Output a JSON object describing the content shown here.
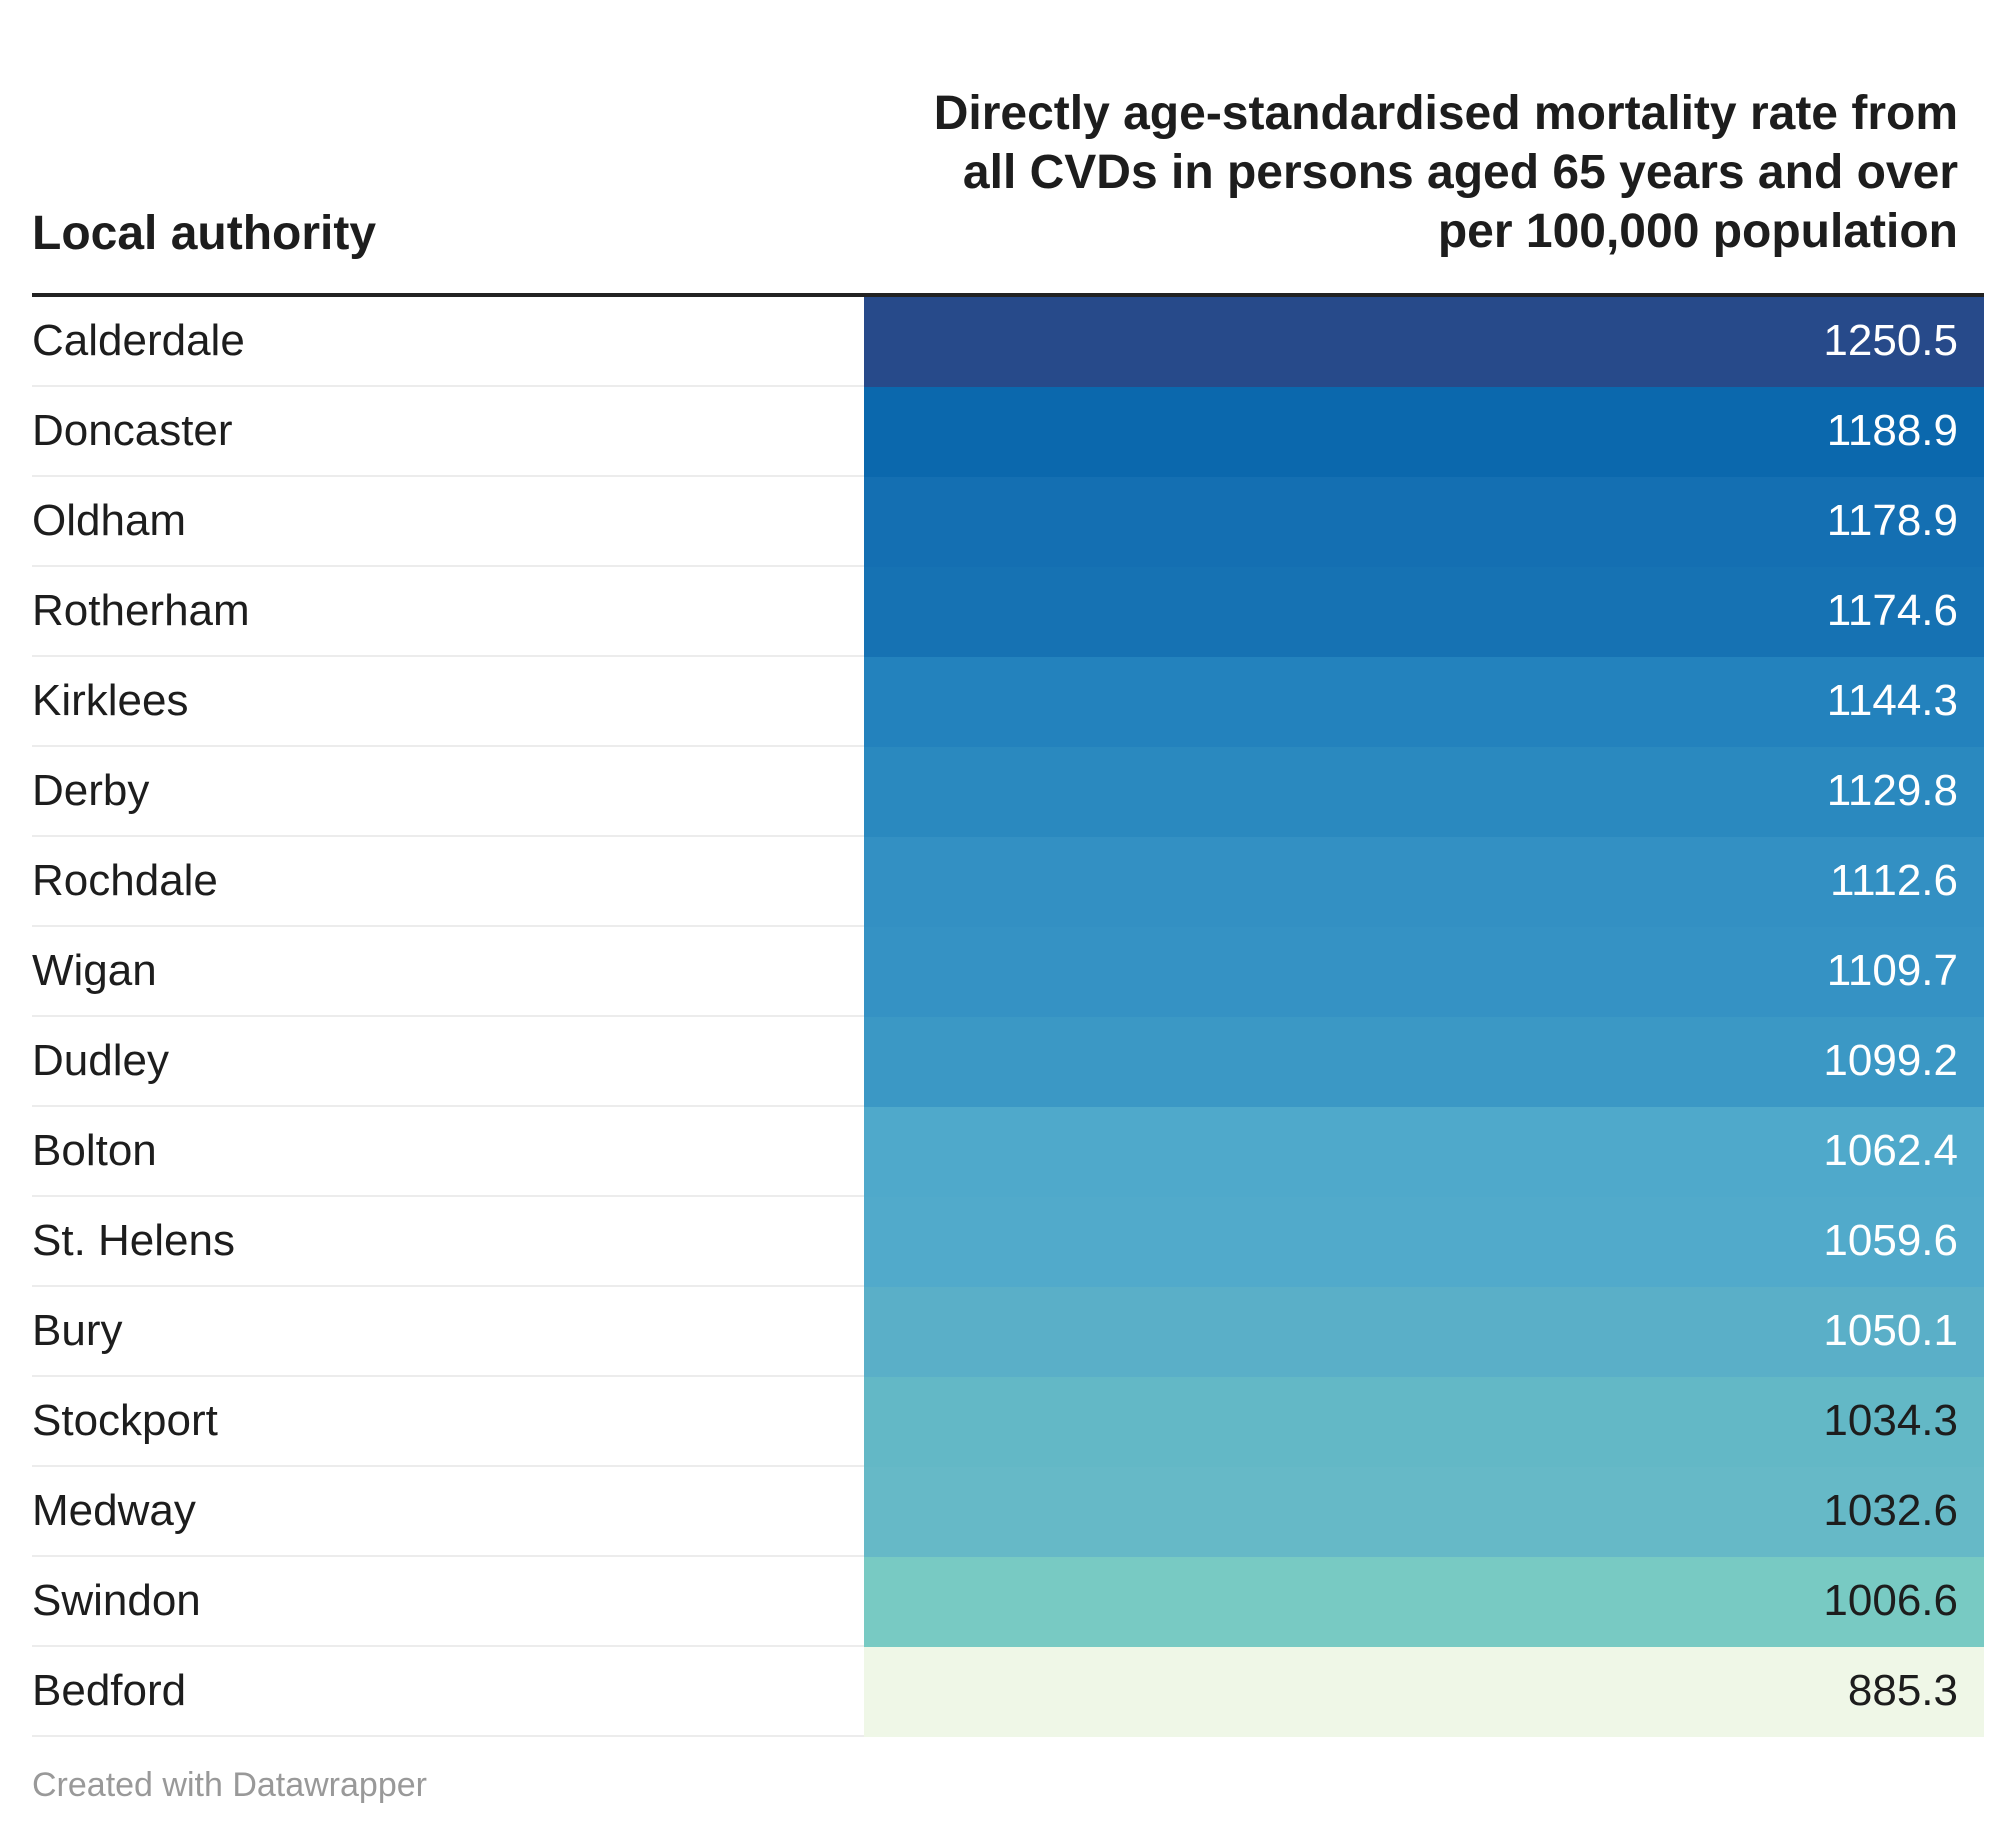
{
  "header": {
    "left": "Local authority",
    "right_lines": [
      "Directly age-standardised mortality rate from",
      "all CVDs in persons aged 65 years and over",
      "per 100,000 population"
    ]
  },
  "chart_data": {
    "type": "table",
    "columns": [
      "Local authority",
      "Directly age-standardised mortality rate from all CVDs in persons aged 65 years and over per 100,000 population"
    ],
    "rows": [
      {
        "name": "Calderdale",
        "value": "1250.5",
        "color": "#274a8a",
        "text_color": "#ffffff"
      },
      {
        "name": "Doncaster",
        "value": "1188.9",
        "color": "#0b68ad",
        "text_color": "#ffffff"
      },
      {
        "name": "Oldham",
        "value": "1178.9",
        "color": "#146fb2",
        "text_color": "#ffffff"
      },
      {
        "name": "Rotherham",
        "value": "1174.6",
        "color": "#1672b3",
        "text_color": "#ffffff"
      },
      {
        "name": "Kirklees",
        "value": "1144.3",
        "color": "#2382bd",
        "text_color": "#ffffff"
      },
      {
        "name": "Derby",
        "value": "1129.8",
        "color": "#2a89bf",
        "text_color": "#ffffff"
      },
      {
        "name": "Rochdale",
        "value": "1112.6",
        "color": "#3390c3",
        "text_color": "#ffffff"
      },
      {
        "name": "Wigan",
        "value": "1109.7",
        "color": "#3592c4",
        "text_color": "#ffffff"
      },
      {
        "name": "Dudley",
        "value": "1099.2",
        "color": "#3b98c5",
        "text_color": "#ffffff"
      },
      {
        "name": "Bolton",
        "value": "1062.4",
        "color": "#4fa9cb",
        "text_color": "#ffffff"
      },
      {
        "name": "St. Helens",
        "value": "1059.6",
        "color": "#51aacb",
        "text_color": "#ffffff"
      },
      {
        "name": "Bury",
        "value": "1050.1",
        "color": "#5aafc8",
        "text_color": "#ffffff"
      },
      {
        "name": "Stockport",
        "value": "1034.3",
        "color": "#63b8c6",
        "text_color": "#1d1d1d"
      },
      {
        "name": "Medway",
        "value": "1032.6",
        "color": "#66b9c7",
        "text_color": "#1d1d1d"
      },
      {
        "name": "Swindon",
        "value": "1006.6",
        "color": "#78cac3",
        "text_color": "#1d1d1d"
      },
      {
        "name": "Bedford",
        "value": "885.3",
        "color": "#eff7e7",
        "text_color": "#1d1d1d"
      }
    ]
  },
  "footer": {
    "credit": "Created with Datawrapper"
  }
}
